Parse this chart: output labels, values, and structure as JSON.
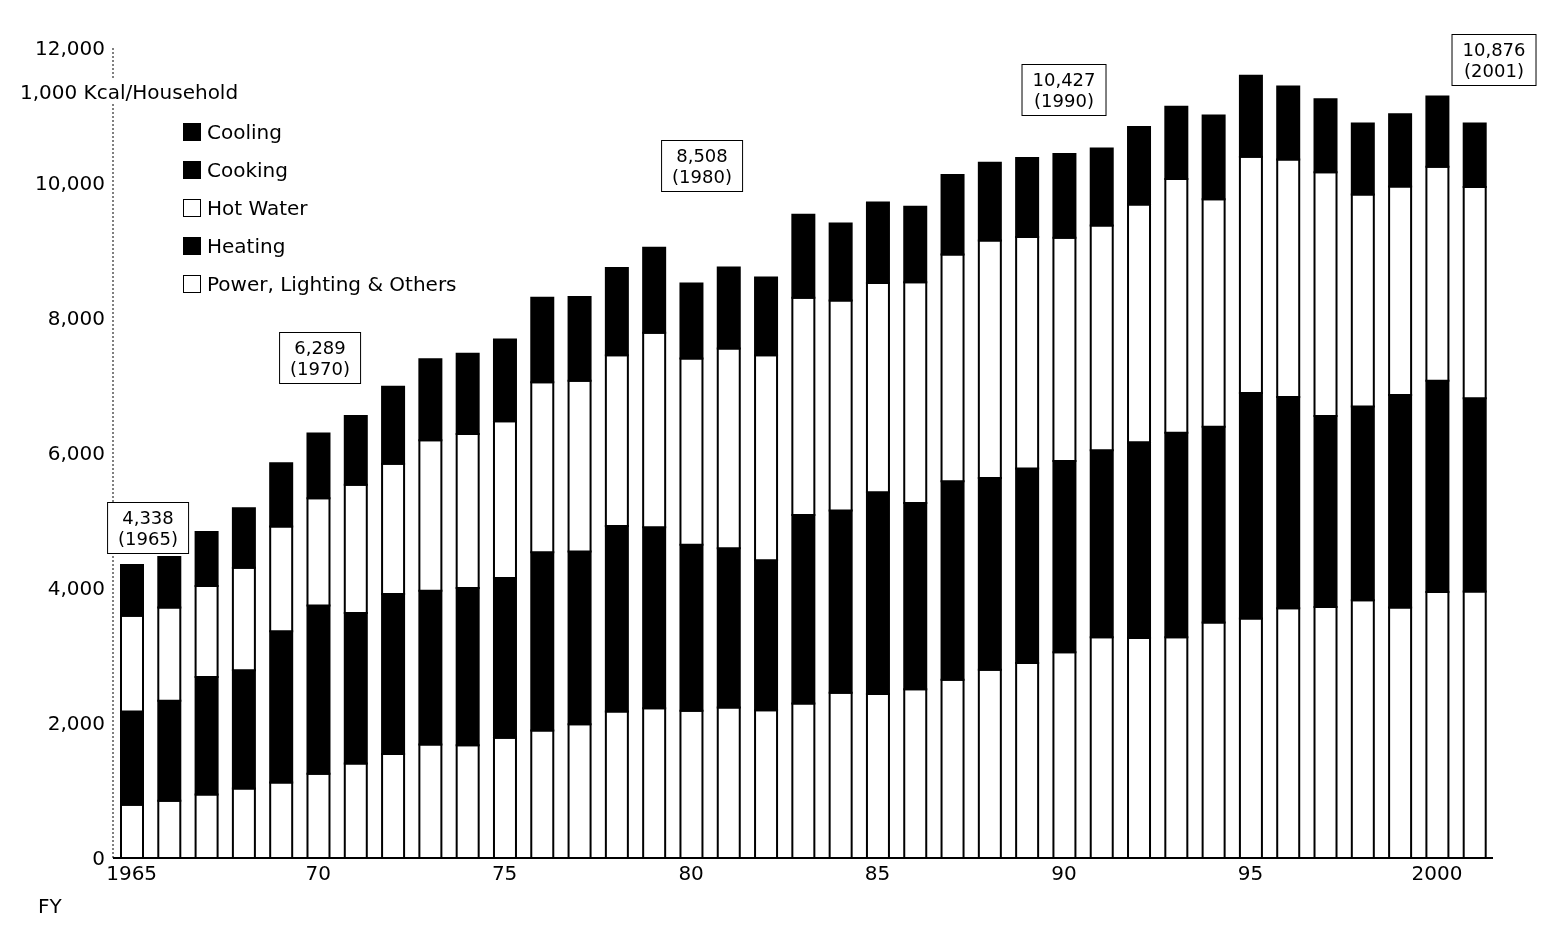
{
  "chart_data": {
    "type": "bar",
    "stacked": true,
    "ylabel": "1,000 Kcal/Household",
    "xlabel": "FY",
    "categories": [
      "1965",
      null,
      null,
      null,
      null,
      "70",
      null,
      null,
      null,
      null,
      "75",
      null,
      null,
      null,
      null,
      "80",
      null,
      null,
      null,
      null,
      "85",
      null,
      null,
      null,
      null,
      "90",
      null,
      null,
      null,
      null,
      "95",
      null,
      null,
      null,
      null,
      "2000",
      null
    ],
    "series": [
      {
        "name": "Power, Lighting & Others",
        "color": "#ffffff",
        "values": [
          790,
          850,
          940,
          1030,
          1120,
          1250,
          1400,
          1540,
          1680,
          1670,
          1780,
          1890,
          1980,
          2170,
          2220,
          2180,
          2230,
          2190,
          2290,
          2450,
          2430,
          2500,
          2640,
          2790,
          2890,
          3050,
          3270,
          3260,
          3270,
          3490,
          3550,
          3700,
          3720,
          3820,
          3710,
          3940,
          3950
        ]
      },
      {
        "name": "Heating",
        "color": "#000000",
        "values": [
          1380,
          1480,
          1740,
          1750,
          2240,
          2490,
          2230,
          2370,
          2280,
          2330,
          2370,
          2640,
          2560,
          2750,
          2680,
          2460,
          2360,
          2220,
          2790,
          2700,
          2990,
          2760,
          2940,
          2840,
          2880,
          2830,
          2770,
          2900,
          3030,
          2900,
          3340,
          3130,
          2830,
          2870,
          3150,
          3130,
          2860
        ]
      },
      {
        "name": "Hot Water",
        "color": "#ffffff",
        "values": [
          1420,
          1380,
          1350,
          1520,
          1550,
          1590,
          1900,
          1930,
          2230,
          2280,
          2320,
          2520,
          2530,
          2530,
          2880,
          2760,
          2960,
          3040,
          3220,
          3110,
          3100,
          3270,
          3360,
          3520,
          3430,
          3310,
          3330,
          3520,
          3760,
          3370,
          3500,
          3520,
          3610,
          3140,
          3090,
          3170,
          3130
        ]
      },
      {
        "name": "Cooking",
        "color": "#000000",
        "values": [
          750,
          750,
          800,
          880,
          940,
          960,
          1020,
          1140,
          1200,
          1190,
          1210,
          1250,
          1240,
          1290,
          1260,
          1110,
          1200,
          1150,
          1230,
          1140,
          1190,
          1120,
          1180,
          1150,
          1170,
          1240,
          1140,
          1150,
          1070,
          1240,
          1200,
          1080,
          1080,
          1050,
          1070,
          1040,
          940
        ]
      },
      {
        "name": "Cooling",
        "color": "#000000",
        "values": [
          null,
          null,
          null,
          null,
          null,
          null,
          null,
          null,
          null,
          null,
          null,
          null,
          null,
          null,
          null,
          null,
          null,
          null,
          null,
          null,
          null,
          null,
          null,
          null,
          null,
          null,
          null,
          null,
          null,
          null,
          null,
          null,
          null,
          null,
          null,
          null,
          null
        ]
      }
    ],
    "ylim": [
      0,
      12000
    ],
    "yticks": [
      0,
      {
        "value": 2000,
        "label": "2,000"
      },
      {
        "value": 4000,
        "label": "4,000"
      },
      {
        "value": 6000,
        "label": "6,000"
      },
      {
        "value": 8000,
        "label": "8,000"
      },
      {
        "value": 10000,
        "label": "10,000"
      },
      {
        "value": 12000,
        "label": "12,000"
      }
    ],
    "legend": "top left",
    "annotations": [
      "4,338\n(1965)",
      "6,289\n(1970)",
      "8,508\n(1980)",
      "10,427\n(1990)",
      "10,876\n(2001)"
    ]
  }
}
